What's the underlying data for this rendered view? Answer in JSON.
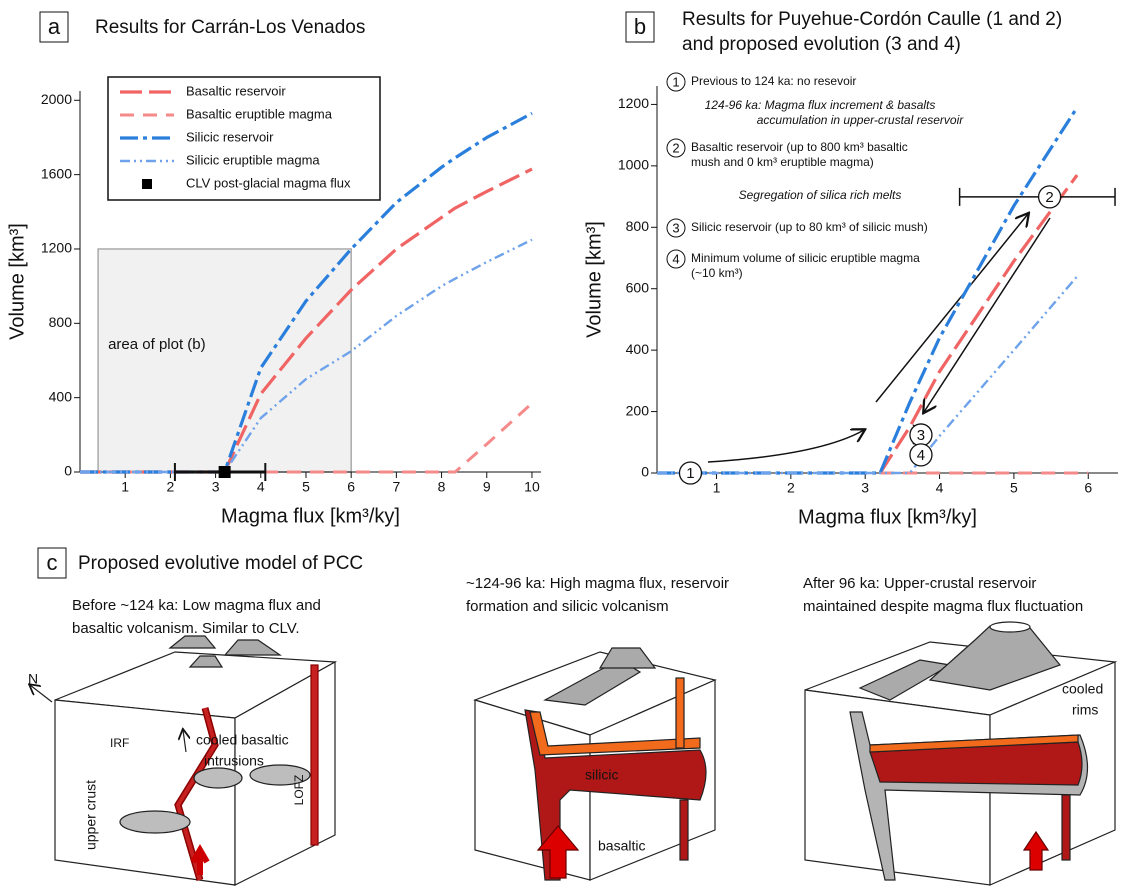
{
  "chart_data": [
    {
      "type": "line",
      "panel": "a",
      "title": "Results for Carrán-Los Venados",
      "xlabel": "Magma flux [km³/ky]",
      "ylabel": "Volume [km³]",
      "xlim": [
        0,
        10.2
      ],
      "xticks": [
        1,
        2,
        3,
        4,
        5,
        6,
        7,
        8,
        9,
        10
      ],
      "ylim": [
        0,
        2050
      ],
      "yticks": [
        0,
        400,
        800,
        1200,
        1600,
        2000
      ],
      "legend": "upper left",
      "x": [
        0,
        1,
        2,
        3,
        3.2,
        4,
        5,
        6,
        7,
        8,
        8.3,
        9,
        10
      ],
      "series": [
        {
          "name": "Basaltic reservoir",
          "color": "#f06464",
          "dash": "long-dash",
          "values": [
            0,
            0,
            0,
            0,
            0,
            420,
            720,
            980,
            1200,
            1370,
            1420,
            1510,
            1630
          ]
        },
        {
          "name": "Basaltic eruptible magma",
          "color": "#f48a8a",
          "dash": "dash",
          "values": [
            0,
            0,
            0,
            0,
            0,
            0,
            0,
            0,
            0,
            0,
            0,
            150,
            370
          ]
        },
        {
          "name": "Silicic reservoir",
          "color": "#2a7fdc",
          "dash": "dash-dot",
          "values": [
            0,
            0,
            0,
            0,
            0,
            560,
            920,
            1200,
            1450,
            1640,
            1690,
            1800,
            1930
          ]
        },
        {
          "name": "Silicic eruptible magma",
          "color": "#6ea2ea",
          "dash": "dash-dot-dot",
          "values": [
            0,
            0,
            0,
            0,
            0,
            290,
            500,
            650,
            840,
            1000,
            1040,
            1130,
            1250
          ]
        }
      ],
      "points": [
        {
          "name": "CLV post-glacial magma flux",
          "color": "#000000",
          "x": 3.2,
          "value": 0,
          "x_range": [
            2.1,
            4.1
          ]
        }
      ],
      "highlight": {
        "label": "area of plot (b)",
        "x": [
          0.4,
          6
        ],
        "y": [
          0,
          1200
        ]
      }
    },
    {
      "type": "line",
      "panel": "b",
      "title": [
        "Results for Puyehue-Cordón Caulle (1 and 2)",
        "and proposed evolution (3 and 4)"
      ],
      "xlabel": "Magma flux [km³/ky]",
      "ylabel": "Volume [km³]",
      "xlim": [
        0.2,
        6.4
      ],
      "xticks": [
        1,
        2,
        3,
        4,
        5,
        6
      ],
      "ylim": [
        0,
        1260
      ],
      "yticks": [
        0,
        200,
        400,
        600,
        800,
        1000,
        1200
      ],
      "x": [
        0.2,
        1,
        2,
        3,
        3.2,
        3.6,
        4,
        5,
        5.85,
        6
      ],
      "series": [
        {
          "name": "Basaltic reservoir",
          "color": "#f06464",
          "dash": "long-dash",
          "values": [
            null,
            null,
            null,
            null,
            0,
            150,
            330,
            690,
            970,
            null
          ]
        },
        {
          "name": "Basaltic eruptible magma",
          "color": "#f48a8a",
          "dash": "dash",
          "values": [
            null,
            null,
            null,
            null,
            0,
            0,
            0,
            0,
            0,
            0
          ]
        },
        {
          "name": "Silicic reservoir",
          "color": "#2a7fdc",
          "dash": "dash-dot",
          "values": [
            0,
            0,
            0,
            0,
            0,
            230,
            440,
            870,
            1190,
            null
          ]
        },
        {
          "name": "Silicic eruptible magma",
          "color": "#6ea2ea",
          "dash": "dash-dot-dot",
          "values": [
            0,
            0,
            0,
            0,
            0,
            0,
            120,
            400,
            640,
            null
          ]
        }
      ],
      "markers": [
        {
          "label": "1",
          "x": 0.65,
          "value": 0
        },
        {
          "label": "2",
          "x": 5.48,
          "value": 899,
          "x_range": [
            4.27,
            6.36
          ]
        },
        {
          "label": "3",
          "x": 3.75,
          "value": 124
        },
        {
          "label": "4",
          "x": 3.75,
          "value": 59
        }
      ],
      "annotations": [
        {
          "marker": "1",
          "text": [
            "Previous to 124 ka: no resevoir"
          ]
        },
        {
          "italic": true,
          "text": [
            "124-96 ka: Magma flux increment & basalts",
            "accumulation in upper-crustal reservoir"
          ]
        },
        {
          "marker": "2",
          "text": [
            "Basaltic reservoir (up to 800 km³ basaltic",
            "mush and 0 km³ eruptible magma)"
          ]
        },
        {
          "italic": true,
          "text": [
            "Segregation of silica rich melts"
          ]
        },
        {
          "marker": "3",
          "text": [
            "Silicic reservoir (up to 80 km³ of silicic mush)"
          ]
        },
        {
          "marker": "4",
          "text": [
            "Minimum volume of silicic eruptible magma",
            "(~10 km³)"
          ]
        }
      ]
    }
  ],
  "panel_c": {
    "label": "c",
    "title": "Proposed evolutive model of PCC",
    "stages": [
      {
        "caption": [
          "Before ~124 ka: Low magma flux and",
          "basaltic volcanism. Similar to CLV."
        ],
        "labels": [
          "N",
          "IRF",
          "cooled basaltic",
          "intrusions",
          "upper crust",
          "LOFZ"
        ]
      },
      {
        "caption": [
          "~124-96 ka: High magma flux, reservoir",
          "formation and silicic volcanism"
        ],
        "labels": [
          "silicic",
          "basaltic"
        ]
      },
      {
        "caption": [
          "After 96 ka: Upper-crustal reservoir",
          "maintained despite magma flux fluctuation"
        ],
        "labels": [
          "cooled",
          "rims"
        ]
      }
    ]
  }
}
